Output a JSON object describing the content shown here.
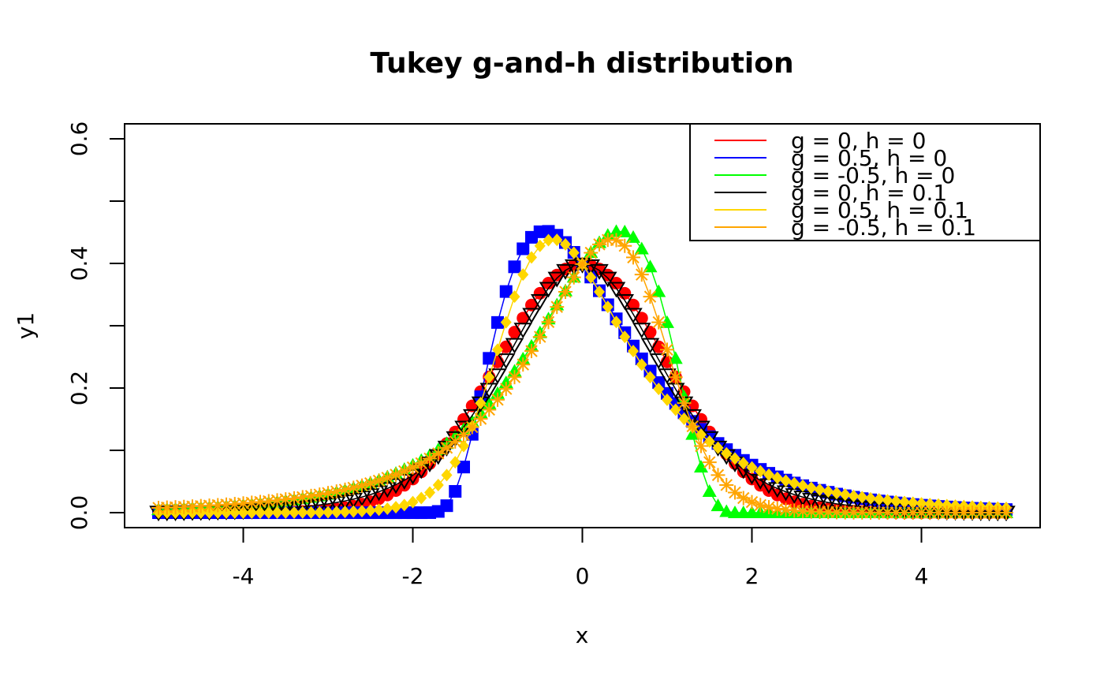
{
  "chart_data": {
    "type": "scatter",
    "title": "Tukey g-and-h distribution",
    "xlabel": "x",
    "ylabel": "y1",
    "xlim": [
      -5.4,
      5.4
    ],
    "ylim": [
      -0.024,
      0.624
    ],
    "xticks": [
      -4,
      -2,
      0,
      2,
      4
    ],
    "xtick_labels": [
      "-4",
      "-2",
      "0",
      "2",
      "4"
    ],
    "yticks": [
      0.0,
      0.1,
      0.2,
      0.3,
      0.4,
      0.5,
      0.6
    ],
    "ytick_labels": [
      "0.0",
      "",
      "0.2",
      "",
      "0.4",
      "",
      "0.6"
    ],
    "grid": false,
    "legend_position": "top-right",
    "x_grid": {
      "from": -5,
      "to": 5,
      "step": 0.1
    },
    "series": [
      {
        "name": "g = 0, h = 0",
        "color": "#FF0000",
        "marker": "circle",
        "g": 0,
        "h": 0
      },
      {
        "name": "g = 0.5, h = 0",
        "color": "#0000FF",
        "marker": "square",
        "g": 0.5,
        "h": 0
      },
      {
        "name": "g = -0.5, h = 0",
        "color": "#00FF00",
        "marker": "triangle-up",
        "g": -0.5,
        "h": 0
      },
      {
        "name": "g = 0, h = 0.1",
        "color": "#000000",
        "marker": "triangle-down-open",
        "g": 0,
        "h": 0.1
      },
      {
        "name": "g = 0.5, h = 0.1",
        "color": "#FFD700",
        "marker": "diamond",
        "g": 0.5,
        "h": 0.1
      },
      {
        "name": "g = -0.5, h = 0.1",
        "color": "#FFA500",
        "marker": "asterisk",
        "g": -0.5,
        "h": 0.1
      }
    ]
  }
}
